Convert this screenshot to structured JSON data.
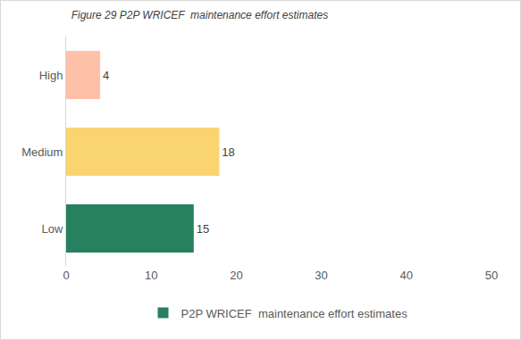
{
  "chart_data": {
    "type": "bar",
    "orientation": "horizontal",
    "title": "Figure 29 P2P WRICEF  maintenance effort estimates",
    "categories": [
      "Low",
      "Medium",
      "High"
    ],
    "series": [
      {
        "name": "P2P WRICEF  maintenance effort estimates",
        "values": [
          15,
          18,
          4
        ],
        "colors": [
          "#27805f",
          "#fad470",
          "#ffc0aa"
        ]
      }
    ],
    "xlim": [
      0,
      50
    ],
    "xticks": [
      0,
      10,
      20,
      30,
      40,
      50
    ],
    "grid": false,
    "data_labels": true,
    "legend": "bottom"
  }
}
